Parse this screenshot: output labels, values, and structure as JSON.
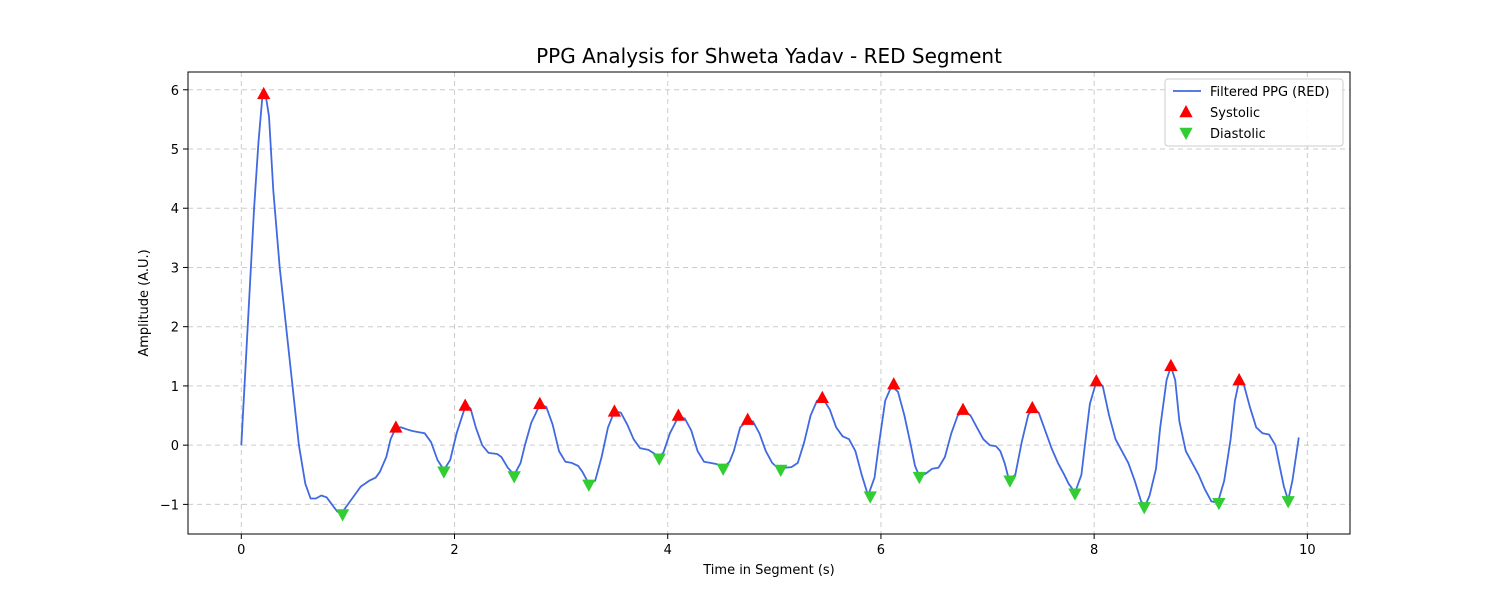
{
  "chart_data": {
    "type": "line",
    "title": "PPG Analysis for Shweta Yadav - RED Segment",
    "xlabel": "Time in Segment (s)",
    "ylabel": "Amplitude (A.U.)",
    "xlim": [
      -0.5,
      10.4
    ],
    "ylim": [
      -1.5,
      6.3
    ],
    "xticks": [
      0,
      2,
      4,
      6,
      8,
      10
    ],
    "yticks": [
      -1,
      0,
      1,
      2,
      3,
      4,
      5,
      6
    ],
    "grid": true,
    "legend_position": "top-right",
    "series": [
      {
        "name": "Filtered PPG (RED)",
        "kind": "line",
        "color": "#4169e1",
        "points": [
          [
            0.0,
            0.0
          ],
          [
            0.06,
            2.0
          ],
          [
            0.12,
            4.0
          ],
          [
            0.16,
            5.1
          ],
          [
            0.2,
            5.93
          ],
          [
            0.23,
            5.9
          ],
          [
            0.26,
            5.55
          ],
          [
            0.3,
            4.3
          ],
          [
            0.36,
            3.0
          ],
          [
            0.42,
            2.0
          ],
          [
            0.48,
            1.0
          ],
          [
            0.54,
            0.0
          ],
          [
            0.6,
            -0.65
          ],
          [
            0.65,
            -0.9
          ],
          [
            0.7,
            -0.9
          ],
          [
            0.75,
            -0.85
          ],
          [
            0.8,
            -0.88
          ],
          [
            0.85,
            -1.0
          ],
          [
            0.9,
            -1.12
          ],
          [
            0.94,
            -1.15
          ],
          [
            1.0,
            -1.0
          ],
          [
            1.06,
            -0.85
          ],
          [
            1.12,
            -0.7
          ],
          [
            1.2,
            -0.6
          ],
          [
            1.26,
            -0.55
          ],
          [
            1.3,
            -0.45
          ],
          [
            1.36,
            -0.2
          ],
          [
            1.4,
            0.1
          ],
          [
            1.45,
            0.3
          ],
          [
            1.5,
            0.3
          ],
          [
            1.55,
            0.27
          ],
          [
            1.6,
            0.24
          ],
          [
            1.66,
            0.22
          ],
          [
            1.72,
            0.2
          ],
          [
            1.78,
            0.05
          ],
          [
            1.84,
            -0.25
          ],
          [
            1.9,
            -0.42
          ],
          [
            1.96,
            -0.25
          ],
          [
            2.02,
            0.2
          ],
          [
            2.1,
            0.65
          ],
          [
            2.15,
            0.62
          ],
          [
            2.2,
            0.3
          ],
          [
            2.26,
            0.0
          ],
          [
            2.32,
            -0.13
          ],
          [
            2.4,
            -0.15
          ],
          [
            2.44,
            -0.2
          ],
          [
            2.5,
            -0.38
          ],
          [
            2.56,
            -0.5
          ],
          [
            2.62,
            -0.3
          ],
          [
            2.66,
            0.0
          ],
          [
            2.72,
            0.38
          ],
          [
            2.8,
            0.68
          ],
          [
            2.86,
            0.65
          ],
          [
            2.92,
            0.35
          ],
          [
            2.98,
            -0.1
          ],
          [
            3.04,
            -0.28
          ],
          [
            3.1,
            -0.3
          ],
          [
            3.16,
            -0.35
          ],
          [
            3.2,
            -0.45
          ],
          [
            3.26,
            -0.65
          ],
          [
            3.32,
            -0.6
          ],
          [
            3.38,
            -0.2
          ],
          [
            3.44,
            0.3
          ],
          [
            3.5,
            0.57
          ],
          [
            3.56,
            0.55
          ],
          [
            3.62,
            0.35
          ],
          [
            3.68,
            0.1
          ],
          [
            3.74,
            -0.05
          ],
          [
            3.82,
            -0.08
          ],
          [
            3.88,
            -0.15
          ],
          [
            3.92,
            -0.2
          ],
          [
            3.96,
            -0.12
          ],
          [
            4.02,
            0.2
          ],
          [
            4.1,
            0.48
          ],
          [
            4.16,
            0.45
          ],
          [
            4.22,
            0.25
          ],
          [
            4.28,
            -0.1
          ],
          [
            4.34,
            -0.28
          ],
          [
            4.4,
            -0.3
          ],
          [
            4.46,
            -0.32
          ],
          [
            4.52,
            -0.38
          ],
          [
            4.58,
            -0.28
          ],
          [
            4.62,
            -0.1
          ],
          [
            4.68,
            0.3
          ],
          [
            4.75,
            0.42
          ],
          [
            4.8,
            0.4
          ],
          [
            4.86,
            0.2
          ],
          [
            4.92,
            -0.1
          ],
          [
            4.98,
            -0.3
          ],
          [
            5.04,
            -0.4
          ],
          [
            5.1,
            -0.38
          ],
          [
            5.16,
            -0.37
          ],
          [
            5.22,
            -0.3
          ],
          [
            5.28,
            0.05
          ],
          [
            5.34,
            0.5
          ],
          [
            5.4,
            0.75
          ],
          [
            5.46,
            0.78
          ],
          [
            5.52,
            0.6
          ],
          [
            5.58,
            0.3
          ],
          [
            5.64,
            0.15
          ],
          [
            5.7,
            0.1
          ],
          [
            5.76,
            -0.1
          ],
          [
            5.82,
            -0.5
          ],
          [
            5.88,
            -0.85
          ],
          [
            5.94,
            -0.55
          ],
          [
            5.98,
            0.0
          ],
          [
            6.04,
            0.75
          ],
          [
            6.1,
            1.0
          ],
          [
            6.16,
            0.9
          ],
          [
            6.22,
            0.5
          ],
          [
            6.28,
            0.0
          ],
          [
            6.32,
            -0.35
          ],
          [
            6.36,
            -0.52
          ],
          [
            6.42,
            -0.48
          ],
          [
            6.48,
            -0.4
          ],
          [
            6.54,
            -0.38
          ],
          [
            6.6,
            -0.2
          ],
          [
            6.66,
            0.2
          ],
          [
            6.72,
            0.5
          ],
          [
            6.78,
            0.58
          ],
          [
            6.84,
            0.5
          ],
          [
            6.9,
            0.3
          ],
          [
            6.96,
            0.1
          ],
          [
            7.02,
            0.0
          ],
          [
            7.08,
            -0.02
          ],
          [
            7.12,
            -0.1
          ],
          [
            7.16,
            -0.3
          ],
          [
            7.2,
            -0.58
          ],
          [
            7.26,
            -0.5
          ],
          [
            7.32,
            0.05
          ],
          [
            7.38,
            0.5
          ],
          [
            7.42,
            0.62
          ],
          [
            7.48,
            0.55
          ],
          [
            7.54,
            0.25
          ],
          [
            7.6,
            -0.05
          ],
          [
            7.66,
            -0.3
          ],
          [
            7.72,
            -0.5
          ],
          [
            7.76,
            -0.65
          ],
          [
            7.82,
            -0.8
          ],
          [
            7.88,
            -0.5
          ],
          [
            7.92,
            0.1
          ],
          [
            7.96,
            0.7
          ],
          [
            8.02,
            1.07
          ],
          [
            8.08,
            1.0
          ],
          [
            8.14,
            0.5
          ],
          [
            8.2,
            0.1
          ],
          [
            8.26,
            -0.1
          ],
          [
            8.32,
            -0.3
          ],
          [
            8.38,
            -0.6
          ],
          [
            8.44,
            -0.95
          ],
          [
            8.48,
            -1.02
          ],
          [
            8.52,
            -0.85
          ],
          [
            8.58,
            -0.4
          ],
          [
            8.62,
            0.3
          ],
          [
            8.68,
            1.1
          ],
          [
            8.72,
            1.33
          ],
          [
            8.76,
            1.1
          ],
          [
            8.8,
            0.4
          ],
          [
            8.86,
            -0.1
          ],
          [
            8.92,
            -0.3
          ],
          [
            8.98,
            -0.5
          ],
          [
            9.04,
            -0.75
          ],
          [
            9.1,
            -0.95
          ],
          [
            9.16,
            -0.97
          ],
          [
            9.22,
            -0.6
          ],
          [
            9.28,
            0.1
          ],
          [
            9.32,
            0.75
          ],
          [
            9.36,
            1.08
          ],
          [
            9.4,
            1.05
          ],
          [
            9.46,
            0.65
          ],
          [
            9.52,
            0.3
          ],
          [
            9.58,
            0.2
          ],
          [
            9.64,
            0.18
          ],
          [
            9.7,
            0.0
          ],
          [
            9.74,
            -0.35
          ],
          [
            9.78,
            -0.7
          ],
          [
            9.82,
            -0.93
          ],
          [
            9.86,
            -0.6
          ],
          [
            9.92,
            0.13
          ]
        ]
      },
      {
        "name": "Systolic",
        "kind": "marker",
        "marker": "triangle-up",
        "color": "#ff0000",
        "points": [
          [
            0.21,
            5.93
          ],
          [
            1.45,
            0.3
          ],
          [
            2.1,
            0.67
          ],
          [
            2.8,
            0.7
          ],
          [
            3.5,
            0.57
          ],
          [
            4.1,
            0.5
          ],
          [
            4.75,
            0.43
          ],
          [
            5.45,
            0.8
          ],
          [
            6.12,
            1.03
          ],
          [
            6.77,
            0.6
          ],
          [
            7.42,
            0.63
          ],
          [
            8.02,
            1.08
          ],
          [
            8.72,
            1.34
          ],
          [
            9.36,
            1.1
          ]
        ]
      },
      {
        "name": "Diastolic",
        "kind": "marker",
        "marker": "triangle-down",
        "color": "#32cd32",
        "points": [
          [
            0.95,
            -1.17
          ],
          [
            1.9,
            -0.45
          ],
          [
            2.56,
            -0.53
          ],
          [
            3.26,
            -0.67
          ],
          [
            3.92,
            -0.23
          ],
          [
            4.52,
            -0.4
          ],
          [
            5.06,
            -0.42
          ],
          [
            5.9,
            -0.87
          ],
          [
            6.36,
            -0.54
          ],
          [
            7.21,
            -0.6
          ],
          [
            7.82,
            -0.82
          ],
          [
            8.47,
            -1.05
          ],
          [
            9.17,
            -0.98
          ],
          [
            9.82,
            -0.95
          ]
        ]
      }
    ]
  }
}
